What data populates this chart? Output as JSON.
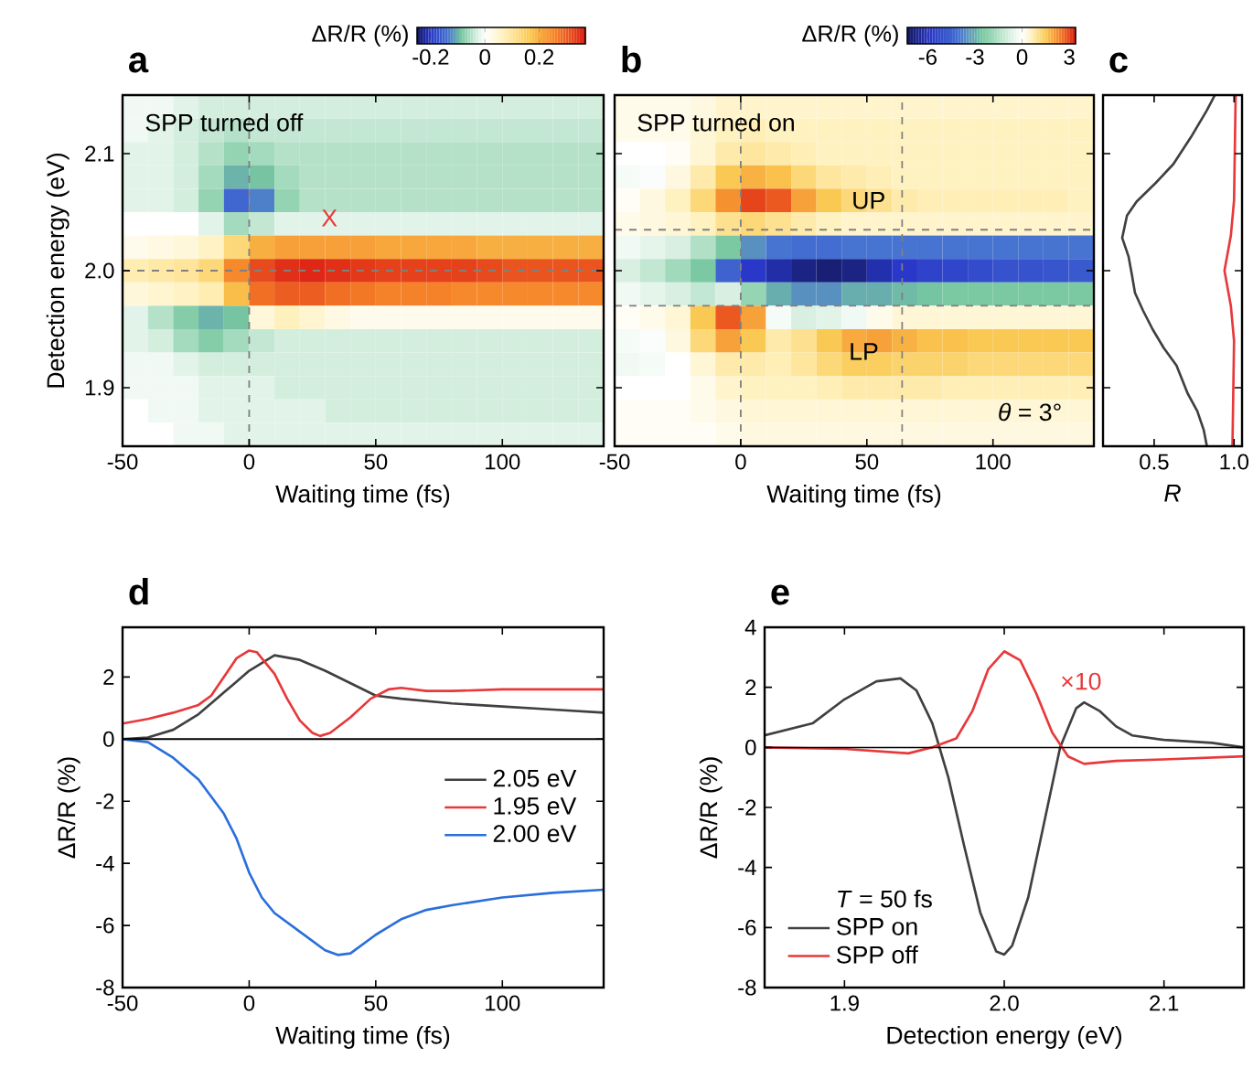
{
  "chart_data": [
    {
      "type": "heatmap",
      "title": "a",
      "xlabel": "Waiting time (fs)",
      "ylabel": "Detection energy (eV)",
      "clabel": "ΔR/R (%)",
      "xlim": [
        -50,
        140
      ],
      "ylim": [
        1.85,
        2.15
      ],
      "xticks": [
        -50,
        0,
        50,
        100
      ],
      "yticks": [
        1.9,
        {
          "value": 2.0,
          "label": "2.0"
        },
        2.1
      ],
      "clim": [
        -0.25,
        0.37
      ],
      "cticks": [
        -0.2,
        0,
        0.2
      ],
      "x": [
        -45,
        -35,
        -25,
        -15,
        -5,
        5,
        15,
        25,
        35,
        45,
        55,
        65,
        75,
        85,
        95,
        105,
        115,
        125,
        135
      ],
      "y": [
        2.14,
        2.12,
        2.1,
        2.08,
        2.06,
        2.04,
        2.02,
        2.0,
        1.98,
        1.96,
        1.94,
        1.92,
        1.9,
        1.88,
        1.86
      ],
      "cells": [
        [
          -0.01,
          -0.01,
          -0.02,
          -0.03,
          -0.03,
          -0.03,
          -0.03,
          -0.03,
          -0.03,
          -0.03,
          -0.03,
          -0.03,
          -0.03,
          -0.03,
          -0.03,
          -0.03,
          -0.03,
          -0.03,
          -0.03
        ],
        [
          -0.01,
          -0.02,
          -0.03,
          -0.04,
          -0.05,
          -0.04,
          -0.04,
          -0.04,
          -0.04,
          -0.04,
          -0.04,
          -0.04,
          -0.04,
          -0.04,
          -0.04,
          -0.04,
          -0.04,
          -0.04,
          -0.04
        ],
        [
          -0.02,
          -0.02,
          -0.03,
          -0.05,
          -0.07,
          -0.06,
          -0.05,
          -0.05,
          -0.05,
          -0.05,
          -0.05,
          -0.05,
          -0.05,
          -0.05,
          -0.05,
          -0.05,
          -0.05,
          -0.05,
          -0.05
        ],
        [
          -0.02,
          -0.02,
          -0.03,
          -0.06,
          -0.1,
          -0.09,
          -0.06,
          -0.05,
          -0.05,
          -0.05,
          -0.05,
          -0.05,
          -0.05,
          -0.05,
          -0.05,
          -0.05,
          -0.05,
          -0.05,
          -0.05
        ],
        [
          -0.02,
          -0.02,
          -0.03,
          -0.07,
          -0.15,
          -0.13,
          -0.07,
          -0.05,
          -0.05,
          -0.05,
          -0.05,
          -0.05,
          -0.05,
          -0.05,
          -0.05,
          -0.05,
          -0.05,
          -0.05,
          -0.05
        ],
        [
          0,
          0,
          0,
          -0.02,
          -0.06,
          -0.04,
          -0.02,
          -0.02,
          -0.02,
          -0.02,
          -0.02,
          -0.02,
          -0.02,
          -0.02,
          -0.02,
          -0.02,
          -0.02,
          -0.02,
          -0.02
        ],
        [
          0.02,
          0.03,
          0.04,
          0.06,
          0.13,
          0.2,
          0.22,
          0.22,
          0.22,
          0.22,
          0.21,
          0.21,
          0.21,
          0.21,
          0.2,
          0.2,
          0.2,
          0.2,
          0.2
        ],
        [
          0.08,
          0.09,
          0.1,
          0.13,
          0.25,
          0.32,
          0.35,
          0.36,
          0.35,
          0.34,
          0.33,
          0.33,
          0.33,
          0.33,
          0.32,
          0.31,
          0.31,
          0.31,
          0.31
        ],
        [
          0.04,
          0.05,
          0.06,
          0.08,
          0.18,
          0.28,
          0.3,
          0.3,
          0.28,
          0.27,
          0.26,
          0.26,
          0.26,
          0.25,
          0.25,
          0.25,
          0.25,
          0.25,
          0.25
        ],
        [
          -0.02,
          -0.05,
          -0.08,
          -0.1,
          -0.09,
          0.04,
          0.07,
          0.05,
          0.03,
          0.02,
          0.02,
          0.02,
          0.02,
          0.02,
          0.02,
          0.02,
          0.02,
          0.02,
          0.02
        ],
        [
          -0.02,
          -0.03,
          -0.06,
          -0.08,
          -0.06,
          -0.04,
          -0.03,
          -0.03,
          -0.03,
          -0.03,
          -0.03,
          -0.03,
          -0.03,
          -0.03,
          -0.03,
          -0.03,
          -0.03,
          -0.03,
          -0.03
        ],
        [
          -0.01,
          -0.01,
          -0.02,
          -0.03,
          -0.03,
          -0.03,
          -0.03,
          -0.03,
          -0.03,
          -0.03,
          -0.03,
          -0.03,
          -0.03,
          -0.03,
          -0.03,
          -0.03,
          -0.03,
          -0.03,
          -0.03
        ],
        [
          -0.01,
          -0.01,
          -0.01,
          -0.02,
          -0.02,
          -0.02,
          -0.03,
          -0.03,
          -0.03,
          -0.03,
          -0.03,
          -0.03,
          -0.03,
          -0.03,
          -0.03,
          -0.03,
          -0.03,
          -0.03,
          -0.03
        ],
        [
          0,
          -0.01,
          -0.01,
          -0.02,
          -0.02,
          -0.02,
          -0.02,
          -0.02,
          -0.03,
          -0.03,
          -0.03,
          -0.03,
          -0.03,
          -0.03,
          -0.03,
          -0.03,
          -0.03,
          -0.03,
          -0.03
        ],
        [
          0,
          0,
          -0.01,
          -0.01,
          -0.02,
          -0.02,
          -0.02,
          -0.02,
          -0.02,
          -0.02,
          -0.02,
          -0.02,
          -0.02,
          -0.02,
          -0.02,
          -0.02,
          -0.02,
          -0.02,
          -0.02
        ]
      ],
      "ref_lines": [
        {
          "axis": "x",
          "value": 0,
          "color": "#808080",
          "line_style": "dashed"
        },
        {
          "axis": "y",
          "value": 2.0,
          "color": "#808080",
          "line_style": "dashed"
        }
      ],
      "annotations": [
        "SPP turned off",
        "X"
      ]
    },
    {
      "type": "heatmap",
      "title": "b",
      "xlabel": "Waiting time (fs)",
      "clabel": "ΔR/R (%)",
      "tick_labels": "x",
      "xlim": [
        -50,
        140
      ],
      "ylim": [
        1.85,
        2.15
      ],
      "xticks": [
        -50,
        0,
        50,
        100
      ],
      "yticks": [
        1.9,
        2.0,
        2.1
      ],
      "clim": [
        -7.3,
        3.4
      ],
      "cticks": [
        -6,
        -3,
        0,
        3
      ],
      "x": [
        -45,
        -35,
        -25,
        -15,
        -5,
        5,
        15,
        25,
        35,
        45,
        55,
        65,
        75,
        85,
        95,
        105,
        115,
        125,
        135
      ],
      "y": [
        2.14,
        2.12,
        2.1,
        2.08,
        2.06,
        2.04,
        2.02,
        2.0,
        1.98,
        1.96,
        1.94,
        1.92,
        1.9,
        1.88,
        1.86
      ],
      "cells": [
        [
          0.2,
          0.2,
          0.2,
          0.3,
          0.5,
          0.5,
          0.5,
          0.5,
          0.5,
          0.5,
          0.5,
          0.5,
          0.5,
          0.5,
          0.5,
          0.5,
          0.5,
          0.5,
          0.5
        ],
        [
          0.2,
          0.2,
          0.2,
          0.4,
          0.6,
          0.7,
          0.6,
          0.6,
          0.6,
          0.6,
          0.6,
          0.6,
          0.6,
          0.6,
          0.6,
          0.6,
          0.6,
          0.6,
          0.6
        ],
        [
          0,
          0,
          0.1,
          0.4,
          0.8,
          0.9,
          0.8,
          0.7,
          0.6,
          0.6,
          0.6,
          0.6,
          0.6,
          0.6,
          0.6,
          0.6,
          0.6,
          0.6,
          0.6
        ],
        [
          -0.2,
          -0.1,
          0.3,
          0.8,
          1.5,
          1.8,
          1.6,
          1.2,
          0.9,
          0.8,
          0.7,
          0.6,
          0.6,
          0.6,
          0.6,
          0.6,
          0.6,
          0.6,
          0.6
        ],
        [
          0.1,
          0.3,
          0.6,
          1.2,
          2.2,
          3,
          2.8,
          2,
          1.5,
          1.2,
          1,
          0.8,
          0.7,
          0.7,
          0.7,
          0.7,
          0.7,
          0.7,
          0.6
        ],
        [
          0.2,
          0.3,
          0.4,
          0.6,
          1,
          1.2,
          1,
          0.8,
          0.6,
          0.5,
          0.5,
          0.5,
          0.5,
          0.5,
          0.5,
          0.5,
          0.5,
          0.5,
          0.5
        ],
        [
          -0.3,
          -0.5,
          -0.8,
          -1.5,
          -2.5,
          -3.5,
          -4,
          -4.2,
          -4.2,
          -4,
          -4,
          -4,
          -4,
          -4,
          -4,
          -4,
          -4,
          -4,
          -4
        ],
        [
          -0.8,
          -1.2,
          -1.8,
          -2.5,
          -4.5,
          -5.8,
          -6.3,
          -6.8,
          -7,
          -6.8,
          -6.2,
          -5.8,
          -5.5,
          -5.4,
          -5.2,
          -5,
          -5,
          -4.9,
          -4.8
        ],
        [
          -0.3,
          -0.5,
          -0.8,
          -1.2,
          -0.8,
          -2,
          -3,
          -3.5,
          -3.5,
          -3,
          -3,
          -2.8,
          -2.6,
          -2.5,
          -2.5,
          -2.5,
          -2.5,
          -2.5,
          -2.5
        ],
        [
          0.1,
          0.2,
          0.4,
          1.5,
          2.8,
          2,
          -0.2,
          -0.8,
          -0.6,
          -0.3,
          0.2,
          0.4,
          0.4,
          0.4,
          0.4,
          0.4,
          0.4,
          0.4,
          0.4
        ],
        [
          -0.2,
          -0.1,
          0.3,
          1.2,
          2,
          1.5,
          0.8,
          1,
          1.5,
          1.9,
          2,
          1.8,
          1.6,
          1.6,
          1.5,
          1.5,
          1.5,
          1.5,
          1.5
        ],
        [
          -0.3,
          -0.2,
          0,
          0.4,
          0.8,
          0.8,
          0.7,
          0.9,
          1.2,
          1.4,
          1.4,
          1.3,
          1.3,
          1.3,
          1.2,
          1.2,
          1.2,
          1.2,
          1.2
        ],
        [
          0,
          0,
          0,
          0.2,
          0.5,
          0.6,
          0.6,
          0.6,
          0.7,
          0.8,
          0.8,
          0.8,
          0.8,
          0.7,
          0.7,
          0.7,
          0.7,
          0.7,
          0.7
        ],
        [
          0.1,
          0.1,
          0.1,
          0.2,
          0.3,
          0.4,
          0.4,
          0.4,
          0.4,
          0.4,
          0.4,
          0.4,
          0.4,
          0.4,
          0.4,
          0.4,
          0.4,
          0.4,
          0.4
        ],
        [
          0.1,
          0.1,
          0.1,
          0.1,
          0.2,
          0.3,
          0.3,
          0.3,
          0.3,
          0.3,
          0.3,
          0.3,
          0.3,
          0.3,
          0.3,
          0.3,
          0.3,
          0.3,
          0.3
        ]
      ],
      "ref_lines": [
        {
          "axis": "x",
          "value": 0,
          "color": "#808080",
          "line_style": "dashed"
        },
        {
          "axis": "x",
          "value": 64,
          "color": "#808080",
          "line_style": "dashed"
        },
        {
          "axis": "y",
          "value": 2.035,
          "color": "#808080",
          "line_style": "dashed"
        },
        {
          "axis": "y",
          "value": 1.97,
          "color": "#808080",
          "line_style": "dashed"
        }
      ],
      "annotations": [
        "SPP turned on",
        "UP",
        "LP",
        "*θ* = 3°"
      ]
    },
    {
      "type": "line",
      "title": "c",
      "xlabel": "*R*",
      "orientation": "horizontal",
      "tick_labels": "x",
      "xlim": [
        0.18,
        1.05
      ],
      "ylim": [
        1.85,
        2.15
      ],
      "xticks": [
        0.5,
        {
          "value": 1.0,
          "label": "1.0"
        }
      ],
      "yticks": [
        1.9,
        2.0,
        2.1
      ],
      "marker": "none",
      "line_style": "solid",
      "series": [
        {
          "color": "#404040",
          "x": [
            2.15,
            2.137,
            2.114,
            2.091,
            2.075,
            2.059,
            2.047,
            2.028,
            2.012,
            1.997,
            1.981,
            1.966,
            1.95,
            1.934,
            1.919,
            1.895,
            1.88,
            1.864,
            1.85
          ],
          "values": [
            0.88,
            0.83,
            0.73,
            0.62,
            0.51,
            0.39,
            0.33,
            0.3,
            0.34,
            0.36,
            0.38,
            0.43,
            0.49,
            0.56,
            0.64,
            0.71,
            0.77,
            0.81,
            0.83
          ]
        },
        {
          "color": "#e8383a",
          "x": [
            2.15,
            2.06,
            2.03,
            2.0,
            1.97,
            1.94,
            1.85
          ],
          "values": [
            1.01,
            1.0,
            0.98,
            0.94,
            0.98,
            1.0,
            0.99
          ]
        }
      ]
    },
    {
      "type": "line",
      "title": "d",
      "xlabel": "Waiting time (fs)",
      "ylabel": "ΔR/R (%)",
      "xlim": [
        -50,
        140
      ],
      "ylim": [
        -8,
        3.6
      ],
      "xticks": [
        -50,
        0,
        50,
        100
      ],
      "yticks": [
        -8,
        -6,
        -4,
        -2,
        0,
        2
      ],
      "legend": "right",
      "marker": "none",
      "line_style": "solid",
      "ref_lines": [
        {
          "axis": "y",
          "value": 0,
          "color": "#000000",
          "line_style": "solid"
        }
      ],
      "series": [
        {
          "name": "2.05 eV",
          "color": "#404040",
          "x": [
            -50,
            -40,
            -30,
            -20,
            -10,
            0,
            10,
            20,
            30,
            40,
            50,
            60,
            80,
            100,
            120,
            140
          ],
          "values": [
            0,
            0.05,
            0.3,
            0.8,
            1.5,
            2.2,
            2.7,
            2.55,
            2.2,
            1.8,
            1.4,
            1.3,
            1.15,
            1.05,
            0.95,
            0.85
          ]
        },
        {
          "name": "1.95 eV",
          "color": "#e8383a",
          "x": [
            -50,
            -40,
            -30,
            -20,
            -15,
            -10,
            -5,
            0,
            3,
            10,
            15,
            20,
            25,
            28,
            32,
            40,
            48,
            55,
            60,
            70,
            80,
            100,
            120,
            140
          ],
          "values": [
            0.5,
            0.65,
            0.85,
            1.1,
            1.4,
            2.0,
            2.6,
            2.85,
            2.8,
            2.1,
            1.3,
            0.6,
            0.2,
            0.1,
            0.2,
            0.7,
            1.3,
            1.6,
            1.65,
            1.55,
            1.55,
            1.6,
            1.6,
            1.6
          ]
        },
        {
          "name": "2.00 eV",
          "color": "#2a6fdb",
          "x": [
            -50,
            -40,
            -30,
            -20,
            -10,
            -5,
            0,
            5,
            10,
            20,
            30,
            35,
            40,
            50,
            60,
            70,
            80,
            100,
            120,
            140
          ],
          "values": [
            0,
            -0.1,
            -0.6,
            -1.3,
            -2.4,
            -3.2,
            -4.3,
            -5.1,
            -5.6,
            -6.2,
            -6.8,
            -6.95,
            -6.9,
            -6.3,
            -5.8,
            -5.5,
            -5.35,
            -5.1,
            -4.95,
            -4.85
          ]
        }
      ]
    },
    {
      "type": "line",
      "title": "e",
      "xlabel": "Detection energy (eV)",
      "ylabel": "ΔR/R (%)",
      "legend_title": "*T* = 50 fs",
      "xlim": [
        1.85,
        2.15
      ],
      "ylim": [
        -8,
        4
      ],
      "xticks": [
        1.9,
        {
          "value": 2.0,
          "label": "2.0"
        },
        2.1
      ],
      "yticks": [
        -8,
        -6,
        -4,
        -2,
        0,
        2,
        4
      ],
      "legend": "bottom left",
      "marker": "none",
      "line_style": "solid",
      "ref_lines": [
        {
          "axis": "y",
          "value": 0,
          "color": "#000000",
          "line_style": "solid"
        }
      ],
      "annotations": [
        "×10"
      ],
      "series": [
        {
          "name": "SPP on",
          "color": "#404040",
          "x": [
            1.85,
            1.88,
            1.9,
            1.92,
            1.935,
            1.945,
            1.955,
            1.965,
            1.975,
            1.985,
            1.995,
            2.0,
            2.005,
            2.015,
            2.025,
            2.035,
            2.045,
            2.05,
            2.06,
            2.07,
            2.08,
            2.1,
            2.13,
            2.15
          ],
          "values": [
            0.4,
            0.8,
            1.6,
            2.2,
            2.3,
            1.9,
            0.8,
            -1.0,
            -3.3,
            -5.5,
            -6.8,
            -6.9,
            -6.6,
            -5.0,
            -2.5,
            0,
            1.3,
            1.5,
            1.2,
            0.7,
            0.4,
            0.25,
            0.15,
            0.0
          ]
        },
        {
          "name": "SPP off",
          "color": "#e8383a",
          "x": [
            1.85,
            1.9,
            1.94,
            1.955,
            1.97,
            1.98,
            1.99,
            2.0,
            2.01,
            2.02,
            2.03,
            2.04,
            2.05,
            2.07,
            2.1,
            2.15
          ],
          "values": [
            0,
            -0.05,
            -0.2,
            0,
            0.3,
            1.2,
            2.6,
            3.2,
            2.9,
            1.8,
            0.5,
            -0.3,
            -0.55,
            -0.45,
            -0.4,
            -0.3
          ]
        }
      ]
    }
  ]
}
